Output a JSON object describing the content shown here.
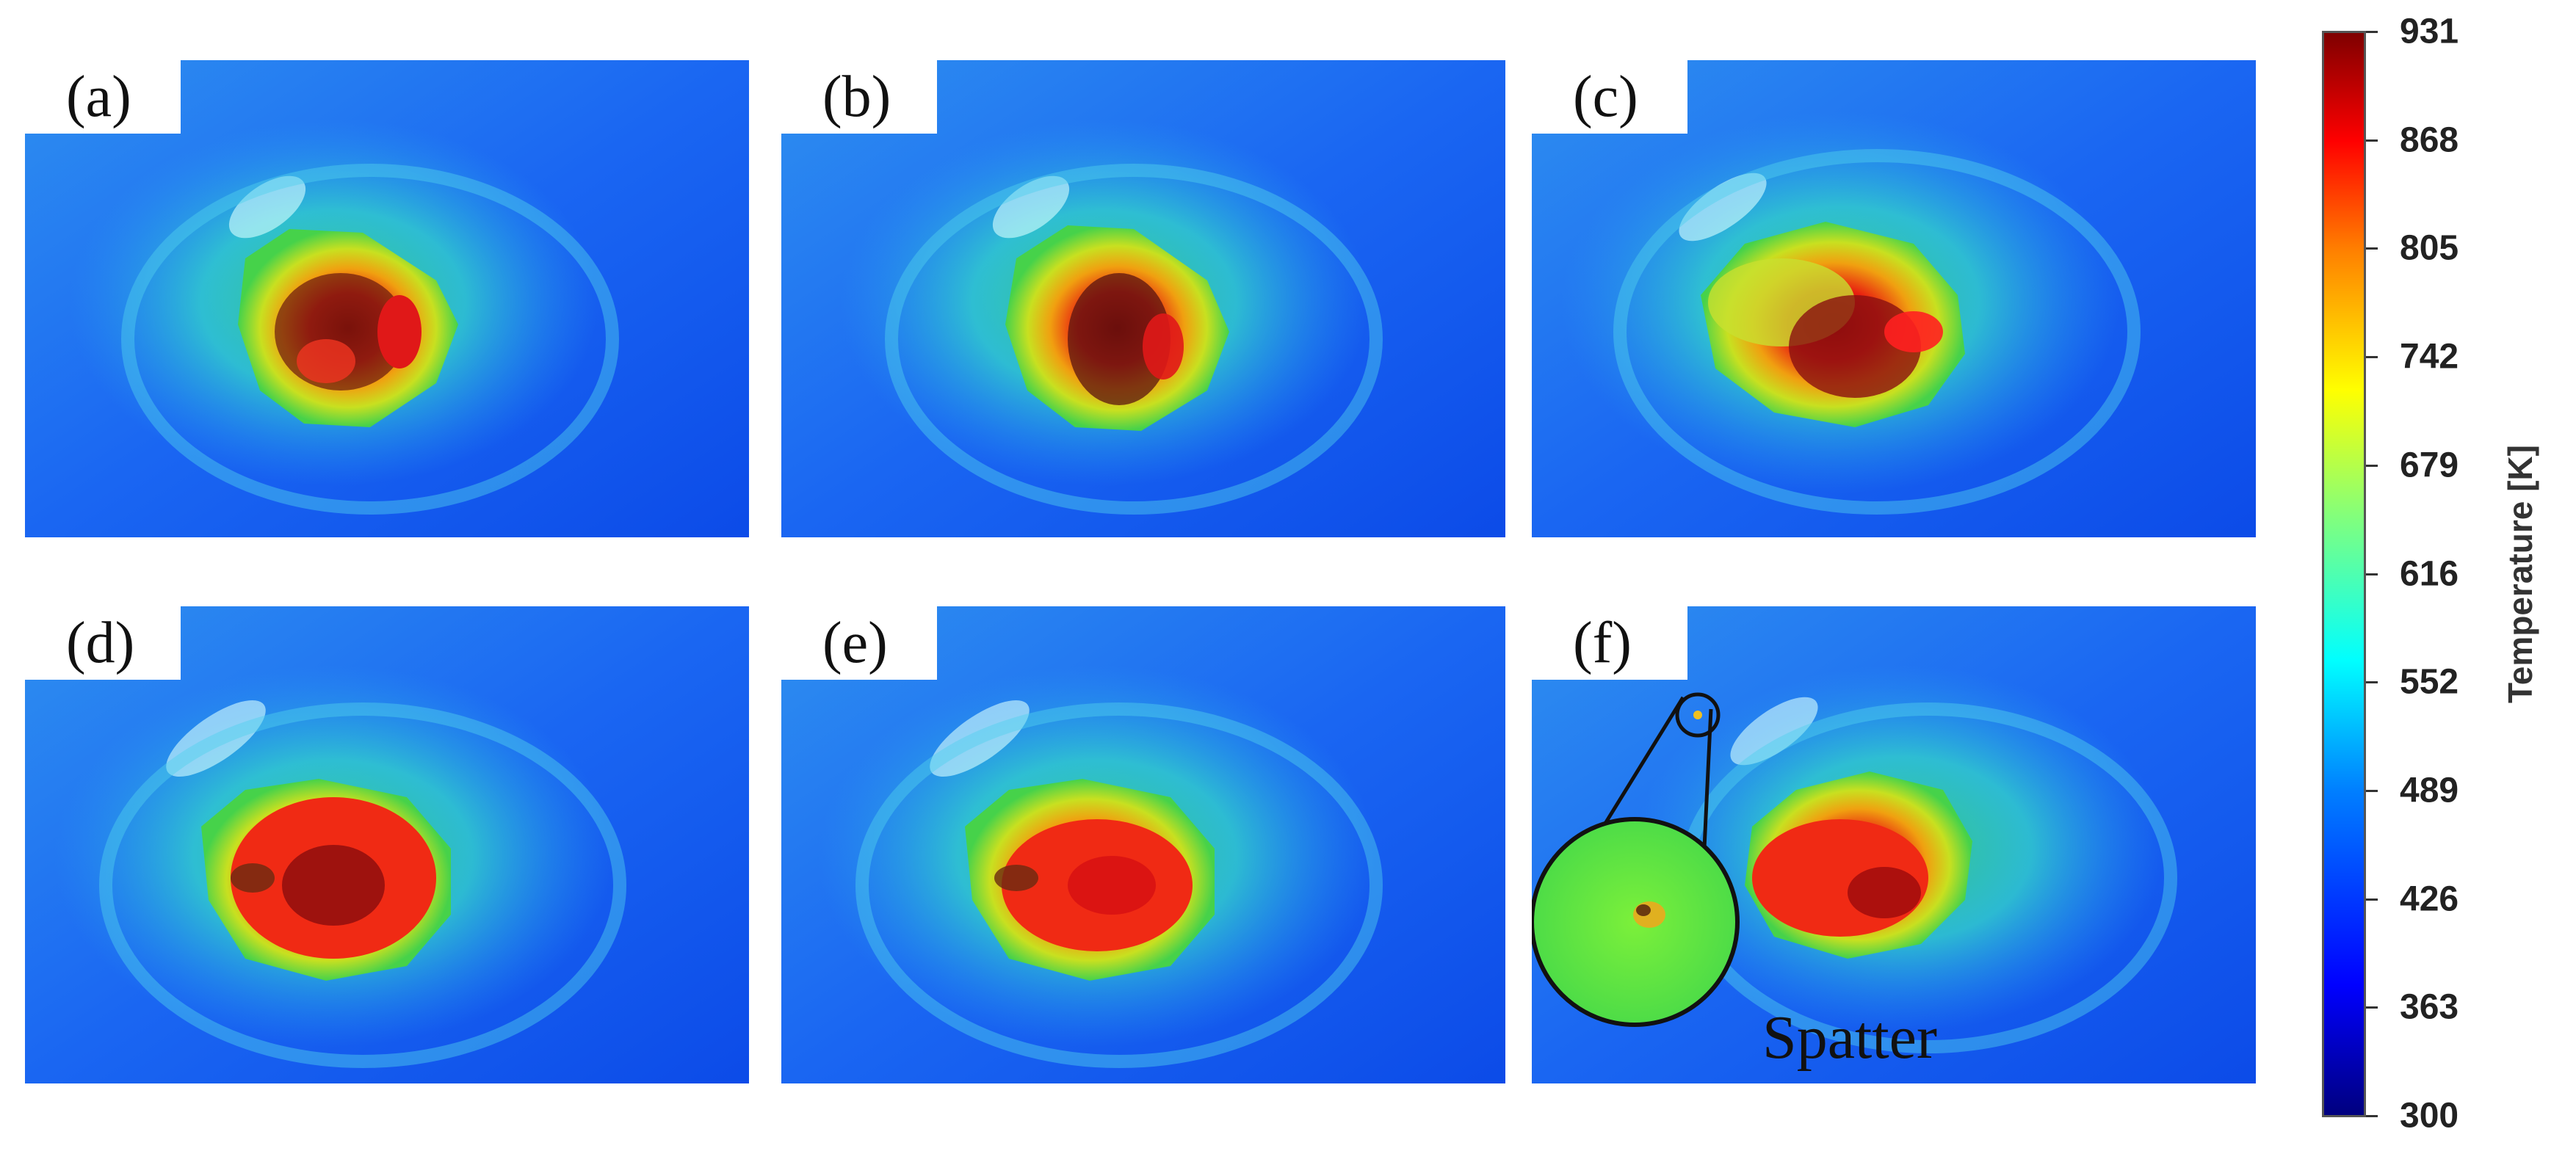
{
  "panels": [
    {
      "label": "(a)"
    },
    {
      "label": "(b)"
    },
    {
      "label": "(c)"
    },
    {
      "label": "(d)"
    },
    {
      "label": "(e)"
    },
    {
      "label": "(f)"
    }
  ],
  "annotation": {
    "spatter_label": "Spatter"
  },
  "colorbar": {
    "title": "Temperature [K]",
    "ticks": [
      "931",
      "868",
      "805",
      "742",
      "679",
      "616",
      "552",
      "489",
      "426",
      "363",
      "300"
    ],
    "min": 300,
    "max": 931,
    "colormap": [
      "#00007f",
      "#0000ff",
      "#007fff",
      "#00ffff",
      "#7fff7f",
      "#ffff00",
      "#ff7f00",
      "#ff0000",
      "#7f0000"
    ]
  }
}
